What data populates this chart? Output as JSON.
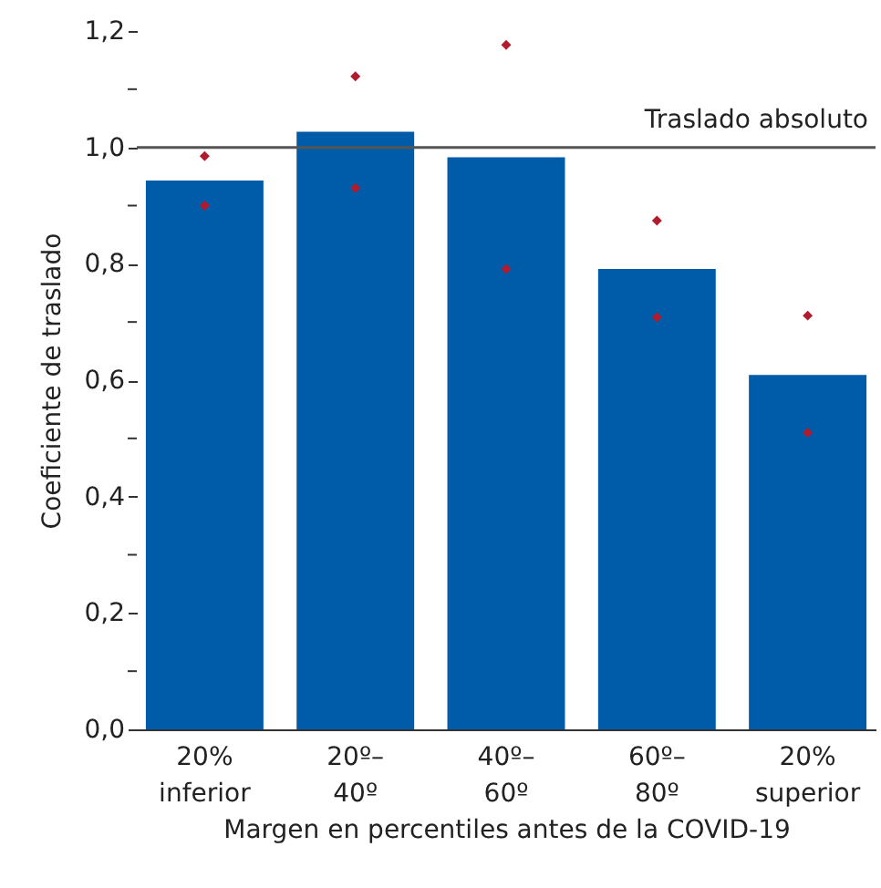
{
  "chart_data": {
    "type": "bar",
    "categories": [
      "20% inferior",
      "20º–40º",
      "40º–60º",
      "60º–80º",
      "20% superior"
    ],
    "series": [
      {
        "color": "#005ca8",
        "values": [
          0.943,
          1.027,
          0.983,
          0.791,
          0.609
        ]
      },
      {
        "type": "scatter",
        "color": "#b01c2e",
        "x": [
          "20% inferior",
          "20º–40º",
          "40º–60º",
          "60º–80º",
          "20% superior"
        ],
        "values": [
          0.9,
          0.93,
          0.791,
          0.708,
          0.51
        ]
      },
      {
        "type": "scatter",
        "color": "#b01c2e",
        "x": [
          "20% inferior",
          "20º–40º",
          "40º–60º",
          "60º–80º",
          "20% superior"
        ],
        "values": [
          0.985,
          1.122,
          1.176,
          0.874,
          0.711
        ]
      }
    ],
    "marker": "diamond",
    "xlabel": "Margen en percentiles antes de la COVID-19",
    "ylabel": "Coeficiente de traslado",
    "ylim": [
      0,
      1.2
    ],
    "yticks": [
      {
        "value": 0,
        "label": "0,0"
      },
      {
        "value": 0.1,
        "label": null
      },
      {
        "value": 0.2,
        "label": "0,2"
      },
      {
        "value": 0.3,
        "label": null
      },
      {
        "value": 0.4,
        "label": "0,4"
      },
      {
        "value": 0.5,
        "label": null
      },
      {
        "value": 0.6,
        "label": "0,6"
      },
      {
        "value": 0.7,
        "label": null
      },
      {
        "value": 0.8,
        "label": "0,8"
      },
      {
        "value": 0.9,
        "label": null
      },
      {
        "value": 1.0,
        "label": "1,0"
      },
      {
        "value": 1.1,
        "label": null
      },
      {
        "value": 1.2,
        "label": "1,2"
      }
    ],
    "ref_lines": [
      {
        "axis": "y",
        "value": 1.0,
        "label": "Traslado absoluto",
        "color": "#555555"
      }
    ],
    "grid": false
  }
}
